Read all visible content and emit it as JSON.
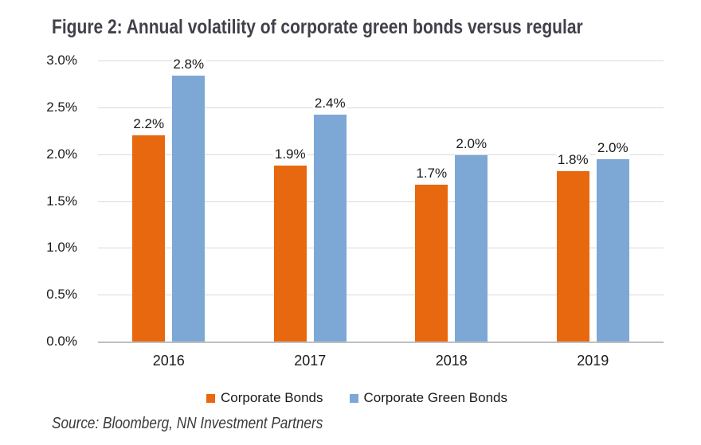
{
  "title": "Figure 2: Annual volatility of corporate green bonds versus regular",
  "source_note": "Source: Bloomberg, NN Investment Partners",
  "colors": {
    "title_text": "#41414B",
    "axis_text": "#1A1A1A",
    "gridline": "#D9D9D9",
    "axis_line": "#BFBFBF",
    "background": "#FFFFFF",
    "corporate_bonds": "#E8680F",
    "corporate_green_bonds": "#7DA8D6"
  },
  "chart_data": {
    "type": "bar",
    "title": "Figure 2: Annual volatility of corporate green bonds versus regular",
    "categories": [
      "2016",
      "2017",
      "2018",
      "2019"
    ],
    "series": [
      {
        "name": "Corporate Bonds",
        "color": "#E8680F",
        "values": [
          2.2,
          1.9,
          1.7,
          1.8
        ],
        "data_labels": [
          "2.2%",
          "1.9%",
          "1.7%",
          "1.8%"
        ],
        "drawn_values": [
          2.2,
          1.88,
          1.67,
          1.82
        ]
      },
      {
        "name": "Corporate Green Bonds",
        "color": "#7DA8D6",
        "values": [
          2.8,
          2.4,
          2.0,
          2.0
        ],
        "data_labels": [
          "2.8%",
          "2.4%",
          "2.0%",
          "2.0%"
        ],
        "drawn_values": [
          2.84,
          2.42,
          1.99,
          1.95
        ]
      }
    ],
    "xlabel": "",
    "ylabel": "",
    "ylim": [
      0,
      3.0
    ],
    "y_tick_labels": [
      "0.0%",
      "0.5%",
      "1.0%",
      "1.5%",
      "2.0%",
      "2.5%",
      "3.0%"
    ],
    "grid": true,
    "legend_position": "bottom"
  }
}
